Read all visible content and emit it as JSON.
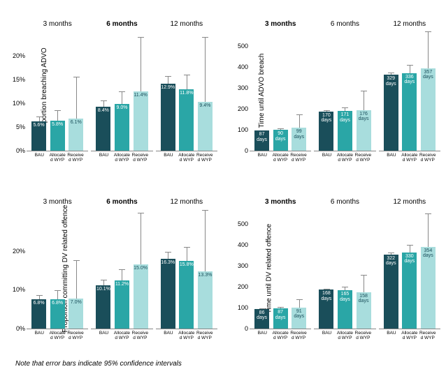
{
  "colors": {
    "bau": "#1a4e5a",
    "allocated": "#2aa6a6",
    "received": "#a8dddd",
    "errbar": "#888888",
    "text_on_bar": "#ffffff"
  },
  "x_categories": [
    "BAU",
    "Allocated WYP",
    "Received WYP"
  ],
  "footnote": "Note that error bars indicate 95% confidence intervals",
  "panels": [
    {
      "id": "p1",
      "ylabel": "Proportion breaching ADVO",
      "ymax": 23,
      "yticks": [
        0,
        5,
        10,
        15,
        20
      ],
      "ytick_format": "percent",
      "label_style": "percent",
      "subplots": [
        {
          "title": "3 months",
          "bold": false,
          "bars": [
            {
              "val": 5.6,
              "lo": 4.6,
              "hi": 6.6,
              "label": "5.6%"
            },
            {
              "val": 5.8,
              "lo": 3.8,
              "hi": 7.8,
              "label": "5.8%"
            },
            {
              "val": 6.1,
              "lo": -2.0,
              "hi": 14.2,
              "label": "6.1%"
            }
          ]
        },
        {
          "title": "6 months",
          "bold": true,
          "bars": [
            {
              "val": 8.4,
              "lo": 7.2,
              "hi": 9.6,
              "label": "8.4%"
            },
            {
              "val": 9.0,
              "lo": 6.6,
              "hi": 11.4,
              "label": "9.0%"
            },
            {
              "val": 11.4,
              "lo": 1.0,
              "hi": 21.8,
              "label": "11.4%"
            }
          ]
        },
        {
          "title": "12 months",
          "bold": false,
          "bars": [
            {
              "val": 12.9,
              "lo": 11.5,
              "hi": 14.3,
              "label": "12.9%"
            },
            {
              "val": 11.8,
              "lo": 9.0,
              "hi": 14.6,
              "label": "11.8%"
            },
            {
              "val": 9.4,
              "lo": -3.0,
              "hi": 21.8,
              "label": "9.4%"
            }
          ]
        }
      ]
    },
    {
      "id": "p2",
      "ylabel": "Time until ADVO breach",
      "ymax": 520,
      "yticks": [
        0,
        100,
        200,
        300,
        400,
        500
      ],
      "ytick_format": "number",
      "label_style": "days",
      "subplots": [
        {
          "title": "3 months",
          "bold": true,
          "bars": [
            {
              "val": 87,
              "lo": 85,
              "hi": 89,
              "label": "87"
            },
            {
              "val": 90,
              "lo": 84,
              "hi": 96,
              "label": "90"
            },
            {
              "val": 99,
              "lo": 42,
              "hi": 156,
              "label": "99"
            }
          ]
        },
        {
          "title": "6 months",
          "bold": false,
          "bars": [
            {
              "val": 170,
              "lo": 165,
              "hi": 175,
              "label": "170"
            },
            {
              "val": 171,
              "lo": 153,
              "hi": 189,
              "label": "171"
            },
            {
              "val": 176,
              "lo": 92,
              "hi": 260,
              "label": "176"
            }
          ]
        },
        {
          "title": "12 months",
          "bold": false,
          "bars": [
            {
              "val": 329,
              "lo": 320,
              "hi": 338,
              "label": "329"
            },
            {
              "val": 336,
              "lo": 300,
              "hi": 372,
              "label": "336"
            },
            {
              "val": 357,
              "lo": 196,
              "hi": 518,
              "label": "357"
            }
          ]
        }
      ]
    },
    {
      "id": "p3",
      "ylabel": "Proportion committing DV related offence",
      "ymax": 28,
      "yticks": [
        0,
        10,
        20
      ],
      "ytick_format": "percent",
      "label_style": "percent",
      "subplots": [
        {
          "title": "3 months",
          "bold": false,
          "bars": [
            {
              "val": 6.8,
              "lo": 5.7,
              "hi": 7.9,
              "label": "6.8%"
            },
            {
              "val": 6.8,
              "lo": 4.6,
              "hi": 9.0,
              "label": "6.8%"
            },
            {
              "val": 7.0,
              "lo": -2.0,
              "hi": 16.0,
              "label": "7.0%"
            }
          ]
        },
        {
          "title": "6 months",
          "bold": true,
          "bars": [
            {
              "val": 10.1,
              "lo": 8.8,
              "hi": 11.4,
              "label": "10.1%"
            },
            {
              "val": 11.2,
              "lo": 8.5,
              "hi": 13.9,
              "label": "11.2%"
            },
            {
              "val": 15.0,
              "lo": 3.0,
              "hi": 27.0,
              "label": "15.0%"
            }
          ]
        },
        {
          "title": "12 months",
          "bold": false,
          "bars": [
            {
              "val": 16.3,
              "lo": 14.7,
              "hi": 17.9,
              "label": "16.3%"
            },
            {
              "val": 15.8,
              "lo": 12.6,
              "hi": 19.0,
              "label": "15.8%"
            },
            {
              "val": 13.3,
              "lo": -1.0,
              "hi": 27.6,
              "label": "13.3%"
            }
          ]
        }
      ]
    },
    {
      "id": "p4",
      "ylabel": "Time until DV related offence",
      "ymax": 520,
      "yticks": [
        0,
        100,
        200,
        300,
        400,
        500
      ],
      "ytick_format": "number",
      "label_style": "days",
      "subplots": [
        {
          "title": "3 months",
          "bold": true,
          "bars": [
            {
              "val": 86,
              "lo": 84,
              "hi": 88,
              "label": "86"
            },
            {
              "val": 87,
              "lo": 81,
              "hi": 93,
              "label": "87"
            },
            {
              "val": 91,
              "lo": 56,
              "hi": 126,
              "label": "91"
            }
          ]
        },
        {
          "title": "6 months",
          "bold": false,
          "bars": [
            {
              "val": 168,
              "lo": 163,
              "hi": 173,
              "label": "168"
            },
            {
              "val": 165,
              "lo": 149,
              "hi": 181,
              "label": "165"
            },
            {
              "val": 158,
              "lo": 82,
              "hi": 234,
              "label": "158"
            }
          ]
        },
        {
          "title": "12 months",
          "bold": false,
          "bars": [
            {
              "val": 322,
              "lo": 313,
              "hi": 331,
              "label": "322"
            },
            {
              "val": 330,
              "lo": 297,
              "hi": 363,
              "label": "330"
            },
            {
              "val": 354,
              "lo": 210,
              "hi": 498,
              "label": "354"
            }
          ]
        }
      ]
    }
  ]
}
